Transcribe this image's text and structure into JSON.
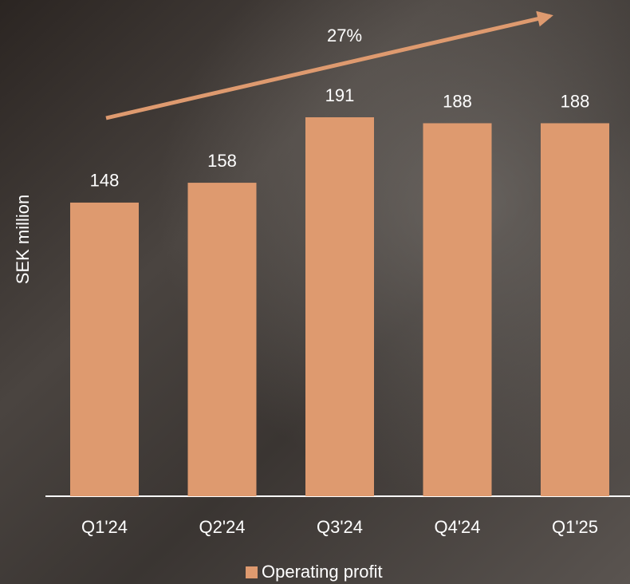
{
  "chart_data": {
    "type": "bar",
    "y_label": "SEK million",
    "annotation": "27%",
    "categories": [
      "Q1'24",
      "Q2'24",
      "Q3'24",
      "Q4'24",
      "Q1'25"
    ],
    "series": [
      {
        "name": "Operating profit",
        "color": "#de9a6f",
        "values": [
          148,
          158,
          191,
          188,
          188
        ]
      }
    ],
    "legend": "bottom"
  }
}
